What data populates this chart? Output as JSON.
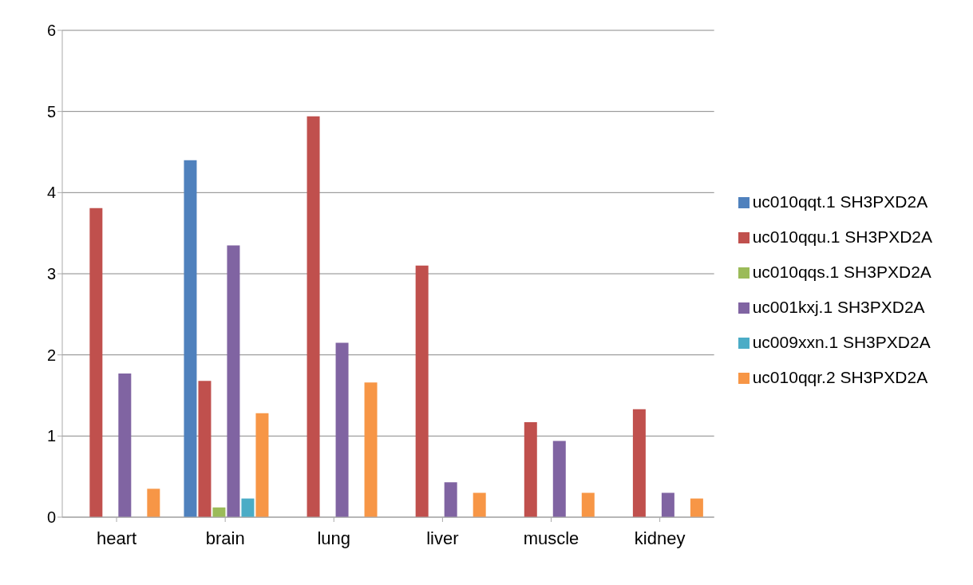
{
  "chart_data": {
    "type": "bar",
    "categories": [
      "heart",
      "brain",
      "lung",
      "liver",
      "muscle",
      "kidney"
    ],
    "series": [
      {
        "name": "uc010qqt.1 SH3PXD2A",
        "color": "#4f81bd",
        "values": [
          0,
          4.4,
          0,
          0,
          0,
          0
        ]
      },
      {
        "name": "uc010qqu.1 SH3PXD2A",
        "color": "#c0504d",
        "values": [
          3.81,
          1.68,
          4.94,
          3.1,
          1.17,
          1.33
        ]
      },
      {
        "name": "uc010qqs.1 SH3PXD2A",
        "color": "#9bbb59",
        "values": [
          null,
          0.12,
          null,
          null,
          null,
          null
        ]
      },
      {
        "name": "uc001kxj.1 SH3PXD2A",
        "color": "#8064a2",
        "values": [
          1.77,
          3.35,
          2.15,
          0.43,
          0.94,
          0.3
        ]
      },
      {
        "name": "uc009xxn.1 SH3PXD2A",
        "color": "#4bacc6",
        "values": [
          0,
          0.23,
          0,
          0,
          0,
          0
        ]
      },
      {
        "name": "uc010qqr.2 SH3PXD2A",
        "color": "#f79646",
        "values": [
          0.35,
          1.28,
          1.66,
          0.3,
          0.3,
          0.23
        ]
      }
    ],
    "ylim": [
      0,
      6
    ],
    "yticks": [
      0,
      1,
      2,
      3,
      4,
      5,
      6
    ],
    "grid": "y",
    "legend": "right"
  }
}
